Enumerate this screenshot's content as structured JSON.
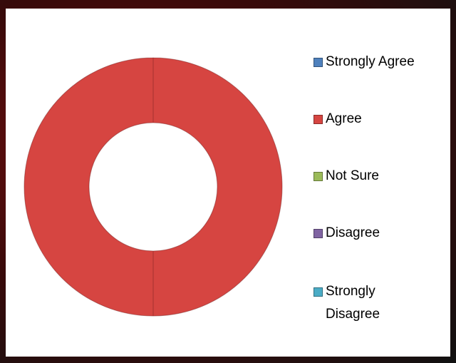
{
  "chart_data": {
    "type": "donut",
    "categories": [
      "Strongly Agree",
      "Agree",
      "Not Sure",
      "Disagree",
      "Strongly Disagree"
    ],
    "values": [
      0,
      100,
      0,
      0,
      0
    ],
    "colors": [
      "#4f81bd",
      "#d64541",
      "#9bbb59",
      "#8064a2",
      "#4bacc6"
    ],
    "legend": "right"
  }
}
